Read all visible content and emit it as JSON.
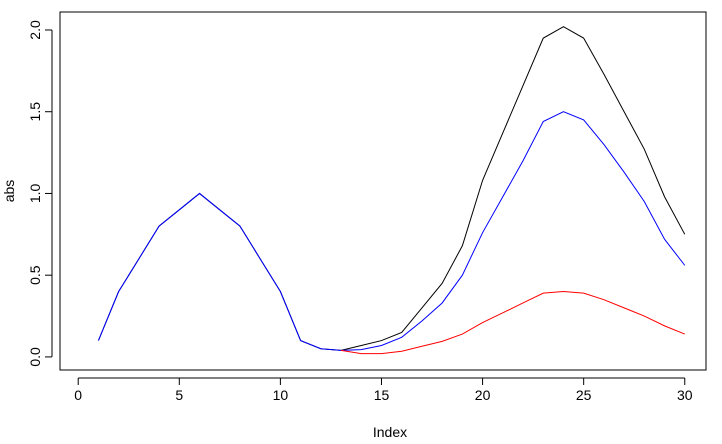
{
  "chart_data": {
    "type": "line",
    "x_label": "Index",
    "y_label": "abs",
    "x": [
      1,
      2,
      3,
      4,
      5,
      6,
      7,
      8,
      9,
      10,
      11,
      12,
      13,
      14,
      15,
      16,
      17,
      18,
      19,
      20,
      21,
      22,
      23,
      24,
      25,
      26,
      27,
      28,
      29,
      30
    ],
    "series": [
      {
        "color": "#000000",
        "values": [
          0.1,
          0.4,
          0.6,
          0.8,
          0.9,
          1.0,
          0.9,
          0.8,
          0.6,
          0.4,
          0.1,
          0.05,
          0.04,
          0.07,
          0.1,
          0.15,
          0.3,
          0.45,
          0.68,
          1.08,
          1.37,
          1.66,
          1.95,
          2.02,
          1.95,
          1.73,
          1.5,
          1.27,
          0.98,
          0.75
        ]
      },
      {
        "color": "#0000ff",
        "values": [
          0.1,
          0.4,
          0.6,
          0.8,
          0.9,
          1.0,
          0.9,
          0.8,
          0.6,
          0.4,
          0.1,
          0.05,
          0.04,
          0.045,
          0.07,
          0.12,
          0.22,
          0.33,
          0.5,
          0.76,
          0.98,
          1.2,
          1.44,
          1.5,
          1.45,
          1.3,
          1.13,
          0.95,
          0.72,
          0.56
        ]
      },
      {
        "color": "#ff0000",
        "values": [
          null,
          null,
          null,
          null,
          null,
          null,
          null,
          null,
          null,
          null,
          null,
          null,
          0.04,
          0.02,
          0.02,
          0.035,
          0.065,
          0.095,
          0.14,
          0.21,
          0.27,
          0.33,
          0.39,
          0.4,
          0.39,
          0.35,
          0.3,
          0.25,
          0.19,
          0.14
        ]
      }
    ],
    "xlim": [
      -0.9,
      31.05
    ],
    "xticks": [
      0,
      5,
      10,
      15,
      20,
      25,
      30
    ],
    "ylim": [
      -0.08,
      2.11
    ],
    "yticks": [
      {
        "value": 0,
        "label": "0.0"
      },
      0.5,
      {
        "value": 1,
        "label": "1.0"
      },
      1.5,
      {
        "value": 2,
        "label": "2.0"
      }
    ]
  }
}
